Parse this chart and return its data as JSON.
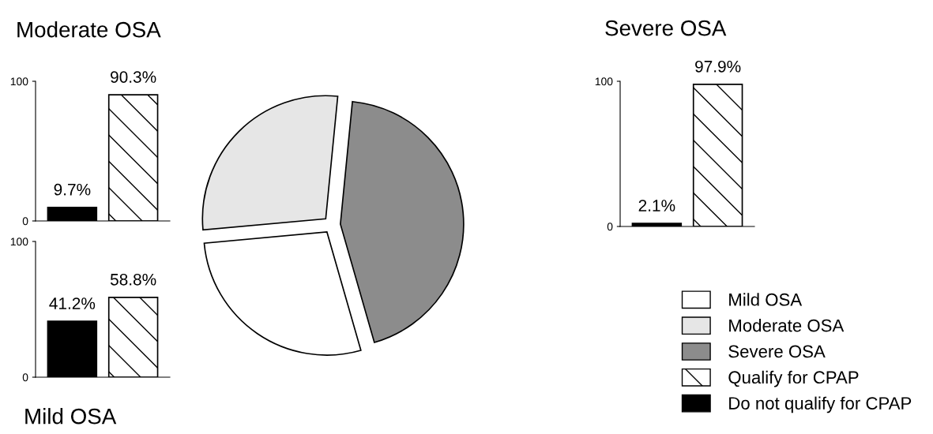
{
  "chart_data": [
    {
      "type": "pie",
      "categories": [
        "Mild OSA",
        "Moderate OSA",
        "Severe OSA"
      ],
      "values": [
        28,
        28,
        44
      ],
      "colors": [
        "#ffffff",
        "#e6e6e6",
        "#8c8c8c"
      ],
      "legend": "bottom right"
    },
    {
      "type": "bar",
      "title": "Moderate OSA",
      "categories": [
        null,
        null
      ],
      "ylim": [
        0,
        100
      ],
      "yticks": [
        0,
        100
      ],
      "tick_labels": "y",
      "series": [
        {
          "color": "#000000",
          "values": [
            9.7,
            null
          ],
          "value_labels": [
            "9.7%",
            null
          ]
        },
        {
          "color": "#ffffff",
          "values": [
            null,
            90.3
          ],
          "value_labels": [
            null,
            "90.3%"
          ]
        }
      ]
    },
    {
      "type": "bar",
      "title": "Mild OSA",
      "categories": [
        null,
        null
      ],
      "ylim": [
        0,
        100
      ],
      "yticks": [
        0,
        100
      ],
      "tick_labels": "y",
      "series": [
        {
          "color": "#000000",
          "values": [
            41.2,
            null
          ],
          "value_labels": [
            "41.2%",
            null
          ]
        },
        {
          "color": "#ffffff",
          "values": [
            null,
            58.8
          ],
          "value_labels": [
            null,
            "58.8%"
          ]
        }
      ]
    },
    {
      "type": "bar",
      "title": "Severe OSA",
      "categories": [
        null,
        null
      ],
      "ylim": [
        0,
        100
      ],
      "yticks": [
        0,
        100
      ],
      "tick_labels": "y",
      "legend": "bottom right",
      "series": [
        {
          "name": "Do not qualify for CPAP",
          "color": "#000000",
          "values": [
            2.1,
            null
          ],
          "value_labels": [
            "2.1%",
            null
          ]
        },
        {
          "name": "Qualify for CPAP",
          "color": "#ffffff",
          "values": [
            null,
            97.9
          ],
          "value_labels": [
            null,
            "97.9%"
          ]
        }
      ]
    }
  ]
}
